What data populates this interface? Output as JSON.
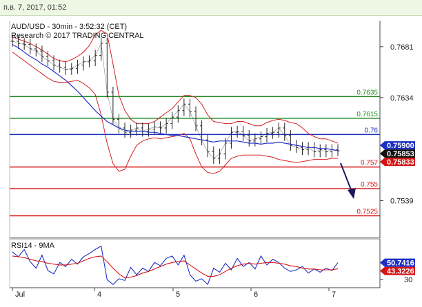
{
  "header": {
    "datetime": "п.в. 7, 2017, 01:52"
  },
  "chart_data": [
    {
      "type": "line",
      "title": "AUD/USD - 30min - 3:52:32 (CET)",
      "subtitle": "Research © 2017 TRADING CENTRAL",
      "x_labels": [
        "Jul",
        "4",
        "5",
        "6",
        "7"
      ],
      "y_ticks": [
        0.7681,
        0.7634,
        0.7539
      ],
      "ylim": [
        0.7505,
        0.7705
      ],
      "levels": [
        {
          "value": 0.7635,
          "label": "0.7635",
          "color": "#1e8a1e"
        },
        {
          "value": 0.7615,
          "label": "0.7615",
          "color": "#1e8a1e"
        },
        {
          "value": 0.76,
          "label": "0.76",
          "color": "#1c2fc4"
        },
        {
          "value": 0.757,
          "label": "0.757",
          "color": "#d41414"
        },
        {
          "value": 0.755,
          "label": "0.755",
          "color": "#d41414"
        },
        {
          "value": 0.7525,
          "label": "0.7525",
          "color": "#d41414"
        }
      ],
      "price_tags": [
        {
          "value": 0.759,
          "label": "0.75900",
          "bg": "#1c2fc4"
        },
        {
          "value": 0.75853,
          "label": "0.75853",
          "bg": "#111111"
        },
        {
          "value": 0.75833,
          "label": "0.75833",
          "bg": "#d41414"
        }
      ],
      "series": [
        {
          "values": [
            0.7686,
            0.7684,
            0.7683,
            0.7679,
            0.7677,
            0.7672,
            0.7668,
            0.7664,
            0.7662,
            0.766,
            0.7661,
            0.7664,
            0.7667,
            0.7668,
            0.7673,
            0.7684,
            0.7639,
            0.7614,
            0.7606,
            0.7602,
            0.7604,
            0.7606,
            0.7603,
            0.7605,
            0.7607,
            0.7606,
            0.761,
            0.7616,
            0.7622,
            0.7628,
            0.7621,
            0.7608,
            0.7595,
            0.7584,
            0.7578,
            0.7582,
            0.7592,
            0.7602,
            0.7603,
            0.7599,
            0.7594,
            0.7596,
            0.7598,
            0.7601,
            0.7602,
            0.7606,
            0.7599,
            0.759,
            0.7588,
            0.7586,
            0.7588,
            0.7584,
            0.7586,
            0.7584,
            0.7586,
            0.7585
          ]
        },
        {
          "values": [
            0.7683,
            0.768,
            0.7676,
            0.7672,
            0.7669,
            0.7665,
            0.7662,
            0.7658,
            0.7654,
            0.765,
            0.7645,
            0.764,
            0.7634,
            0.7628,
            0.7622,
            0.7617,
            0.7612,
            0.7609,
            0.7606,
            0.7604,
            0.7603,
            0.7603,
            0.7603,
            0.7602,
            0.7602,
            0.7601,
            0.76,
            0.7599,
            0.7599,
            0.7598,
            0.7597,
            0.7596,
            0.7595,
            0.7594,
            0.7593,
            0.7594,
            0.7594,
            0.7594,
            0.7594,
            0.7593,
            0.7592,
            0.7592,
            0.7591,
            0.7592,
            0.7592,
            0.7593,
            0.7592,
            0.7591,
            0.759,
            0.7589,
            0.7588,
            0.7588,
            0.7587,
            0.7587,
            0.7586,
            0.7585
          ]
        },
        {
          "values": [
            0.769,
            0.7688,
            0.7686,
            0.7684,
            0.7681,
            0.7678,
            0.7674,
            0.767,
            0.7668,
            0.7667,
            0.7669,
            0.7672,
            0.7676,
            0.7682,
            0.7692,
            0.7696,
            0.7693,
            0.7665,
            0.7636,
            0.7622,
            0.7614,
            0.761,
            0.761,
            0.761,
            0.7612,
            0.7616,
            0.762,
            0.7624,
            0.763,
            0.7636,
            0.7636,
            0.7634,
            0.7628,
            0.7618,
            0.7612,
            0.7611,
            0.761,
            0.761,
            0.7612,
            0.7612,
            0.761,
            0.7608,
            0.7608,
            0.7611,
            0.7613,
            0.7614,
            0.7613,
            0.7611,
            0.761,
            0.7606,
            0.7601,
            0.7598,
            0.7596,
            0.7596,
            0.7594,
            0.7592
          ]
        },
        {
          "values": [
            0.7676,
            0.7672,
            0.7668,
            0.7664,
            0.766,
            0.7656,
            0.7652,
            0.7649,
            0.7648,
            0.7648,
            0.7649,
            0.765,
            0.7647,
            0.7643,
            0.7637,
            0.7618,
            0.7592,
            0.7573,
            0.7566,
            0.7568,
            0.758,
            0.759,
            0.7594,
            0.7596,
            0.7597,
            0.7596,
            0.7597,
            0.7598,
            0.7599,
            0.7601,
            0.7596,
            0.7582,
            0.757,
            0.7565,
            0.7564,
            0.7566,
            0.7572,
            0.7578,
            0.758,
            0.7581,
            0.7581,
            0.7581,
            0.7581,
            0.758,
            0.7579,
            0.7577,
            0.7576,
            0.7575,
            0.7574,
            0.7575,
            0.7576,
            0.7577,
            0.7577,
            0.7577,
            0.7578,
            0.7578
          ]
        }
      ]
    },
    {
      "type": "line",
      "title": "RSI14 - 9MA",
      "y_ticks": [
        30
      ],
      "ylim": [
        20,
        80
      ],
      "price_tags": [
        {
          "value": 50.7416,
          "label": "50.7416",
          "bg": "#1c2fc4"
        },
        {
          "value": 43.3226,
          "label": "43.3226",
          "bg": "#d41414"
        }
      ],
      "series": [
        {
          "values": [
            64,
            58,
            67,
            52,
            44,
            60,
            41,
            37,
            51,
            46,
            55,
            49,
            58,
            62,
            67,
            71,
            30,
            24,
            31,
            29,
            45,
            36,
            44,
            40,
            51,
            47,
            56,
            59,
            48,
            60,
            36,
            28,
            31,
            24,
            44,
            39,
            50,
            42,
            56,
            46,
            51,
            43,
            59,
            48,
            55,
            51,
            44,
            40,
            42,
            46,
            38,
            43,
            39,
            44,
            41,
            50.74
          ]
        },
        {
          "values": [
            59,
            58,
            57,
            55,
            53,
            52,
            50,
            49,
            48,
            48,
            49,
            50,
            53,
            56,
            58,
            59,
            52,
            44,
            37,
            32,
            33,
            35,
            38,
            40,
            43,
            46,
            49,
            51,
            52,
            53,
            48,
            43,
            38,
            34,
            34,
            36,
            40,
            44,
            47,
            49,
            50,
            49,
            50,
            51,
            51,
            50,
            49,
            47,
            46,
            44,
            43,
            43,
            42,
            42,
            42,
            43.32
          ]
        }
      ]
    }
  ]
}
